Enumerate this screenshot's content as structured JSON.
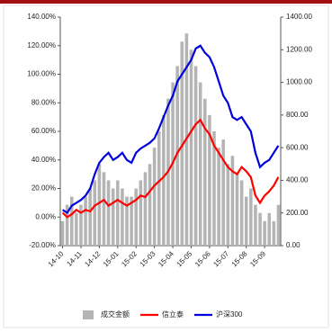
{
  "chart_data": {
    "type": "combo",
    "categories": [
      "14-10",
      null,
      null,
      null,
      "14-11",
      null,
      null,
      null,
      "14-12",
      null,
      null,
      null,
      "15-01",
      null,
      null,
      null,
      "15-02",
      null,
      null,
      null,
      "15-03",
      null,
      null,
      null,
      "15-04",
      null,
      null,
      null,
      "15-05",
      null,
      null,
      null,
      "15-06",
      null,
      null,
      null,
      "15-07",
      null,
      null,
      null,
      "15-08",
      null,
      null,
      null,
      "15-09",
      null,
      null,
      null
    ],
    "series": [
      {
        "name": "成交金额",
        "type": "bar",
        "axis": "y2",
        "color": "#b4b4b4",
        "values": [
          150,
          250,
          300,
          200,
          250,
          300,
          350,
          400,
          500,
          450,
          400,
          350,
          400,
          350,
          300,
          300,
          350,
          400,
          450,
          500,
          600,
          700,
          800,
          900,
          1000,
          1100,
          1250,
          1300,
          1200,
          1100,
          1000,
          900,
          800,
          700,
          600,
          650,
          500,
          550,
          450,
          400,
          300,
          350,
          250,
          200,
          150,
          200,
          150,
          250
        ]
      },
      {
        "name": "信立泰",
        "type": "line",
        "color": "#ff0000",
        "values": [
          3,
          0,
          2,
          5,
          3,
          5,
          4,
          8,
          10,
          12,
          8,
          10,
          12,
          10,
          8,
          10,
          12,
          15,
          14,
          18,
          22,
          25,
          28,
          32,
          38,
          45,
          50,
          55,
          60,
          65,
          68,
          62,
          58,
          50,
          45,
          40,
          35,
          32,
          30,
          35,
          32,
          28,
          15,
          10,
          15,
          18,
          22,
          28
        ]
      },
      {
        "name": "沪深300",
        "type": "line",
        "color": "#0000dd",
        "values": [
          5,
          3,
          8,
          10,
          12,
          15,
          20,
          30,
          38,
          42,
          45,
          40,
          42,
          45,
          40,
          38,
          45,
          48,
          50,
          52,
          55,
          62,
          70,
          78,
          85,
          95,
          100,
          105,
          110,
          118,
          120,
          115,
          112,
          105,
          95,
          85,
          80,
          70,
          68,
          70,
          65,
          60,
          45,
          35,
          38,
          40,
          45,
          50
        ]
      }
    ],
    "ylim": [
      -20,
      140
    ],
    "yticks": [
      {
        "value": -20,
        "label": "-20.00%"
      },
      {
        "value": 0,
        "label": "0.00%"
      },
      {
        "value": 20,
        "label": "20.00%"
      },
      {
        "value": 40,
        "label": "40.00%"
      },
      {
        "value": 60,
        "label": "60.00%"
      },
      {
        "value": 80,
        "label": "80.00%"
      },
      {
        "value": 100,
        "label": "100.00%"
      },
      {
        "value": 120,
        "label": "120.00%"
      },
      {
        "value": 140,
        "label": "140.00%"
      }
    ],
    "y2lim": [
      0,
      1400
    ],
    "y2ticks": [
      {
        "value": 0,
        "label": "0.00"
      },
      {
        "value": 200,
        "label": "200.00"
      },
      {
        "value": 400,
        "label": "400.00"
      },
      {
        "value": 600,
        "label": "600.00"
      },
      {
        "value": 800,
        "label": "800.00"
      },
      {
        "value": 1000,
        "label": "1000.00"
      },
      {
        "value": 1200,
        "label": "1200.00"
      },
      {
        "value": 1400,
        "label": "1400.00"
      }
    ],
    "legend": "bottom"
  }
}
